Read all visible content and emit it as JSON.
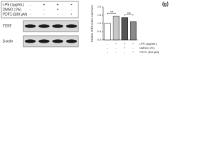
{
  "label": "(g)",
  "blot": {
    "treatments": [
      {
        "name": "LPS (1μg/mL)",
        "signs": [
          "-",
          "+",
          "+",
          "+"
        ]
      },
      {
        "name": "DMSO (1%)",
        "signs": [
          "-",
          "-",
          "+",
          "-"
        ]
      },
      {
        "name": "PDTC (100 μM)",
        "signs": [
          "-",
          "-",
          "-",
          "+"
        ]
      }
    ],
    "bands": [
      "TERT",
      "β-actin"
    ]
  },
  "chart_data": {
    "type": "bar",
    "y_label": "Relative TERT protein expression",
    "categories": [
      null,
      null,
      null,
      null
    ],
    "values": [
      1.0,
      1.45,
      1.35,
      1.1
    ],
    "colors": [
      "#ffffff",
      "#c8c8c8",
      "#555555",
      "#8a8a8a"
    ],
    "ylim": [
      0,
      2
    ],
    "yticks": [
      {
        "value": 0,
        "label": "0.0"
      },
      0.5,
      {
        "value": 1,
        "label": "1.0"
      },
      1.5,
      {
        "value": 2,
        "label": "2.0"
      }
    ],
    "annotations": [
      {
        "text": "ns",
        "from": 0,
        "to": 1
      },
      {
        "text": "ns",
        "from": 2,
        "to": 3
      }
    ],
    "treatments": [
      {
        "name": "LPS (1μg/mL)",
        "signs": [
          "-",
          "+",
          "+",
          "+"
        ]
      },
      {
        "name": "DMSO (1%)",
        "signs": [
          "-",
          "-",
          "+",
          "-"
        ]
      },
      {
        "name": "PDTC (100 μM)",
        "signs": [
          "-",
          "-",
          "-",
          "+"
        ]
      }
    ]
  }
}
